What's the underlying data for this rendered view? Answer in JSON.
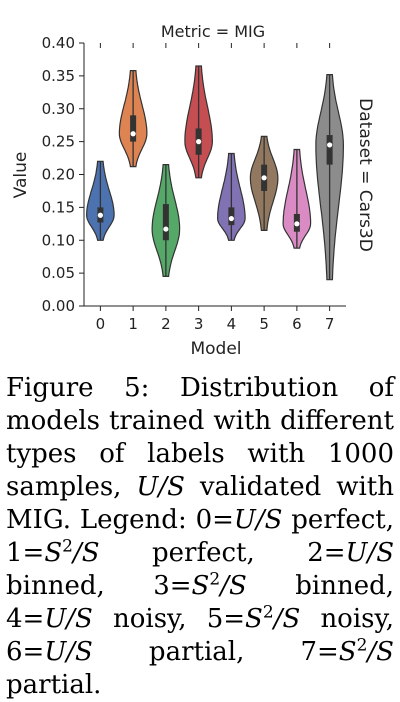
{
  "chart_data": {
    "type": "violin",
    "title": "Metric = MIG",
    "right_label": "Dataset = Cars3D",
    "xlabel": "Model",
    "ylabel": "Value",
    "ylim": [
      0.0,
      0.4
    ],
    "yticks": [
      "0.00",
      "0.05",
      "0.10",
      "0.15",
      "0.20",
      "0.25",
      "0.30",
      "0.35",
      "0.40"
    ],
    "categories": [
      "0",
      "1",
      "2",
      "3",
      "4",
      "5",
      "6",
      "7"
    ],
    "grid": false,
    "colors": [
      "#4c72b0",
      "#dd8452",
      "#55a868",
      "#c44e52",
      "#8172b3",
      "#937860",
      "#da8bc3",
      "#8c8c8c"
    ],
    "series": [
      {
        "category": "0",
        "min": 0.1,
        "max": 0.22,
        "q1": 0.127,
        "median": 0.138,
        "q3": 0.15
      },
      {
        "category": "1",
        "min": 0.212,
        "max": 0.358,
        "q1": 0.25,
        "median": 0.262,
        "q3": 0.29
      },
      {
        "category": "2",
        "min": 0.045,
        "max": 0.215,
        "q1": 0.1,
        "median": 0.117,
        "q3": 0.155
      },
      {
        "category": "3",
        "min": 0.195,
        "max": 0.365,
        "q1": 0.23,
        "median": 0.25,
        "q3": 0.27
      },
      {
        "category": "4",
        "min": 0.1,
        "max": 0.232,
        "q1": 0.123,
        "median": 0.133,
        "q3": 0.15
      },
      {
        "category": "5",
        "min": 0.115,
        "max": 0.258,
        "q1": 0.175,
        "median": 0.195,
        "q3": 0.215
      },
      {
        "category": "6",
        "min": 0.088,
        "max": 0.238,
        "q1": 0.113,
        "median": 0.125,
        "q3": 0.14
      },
      {
        "category": "7",
        "min": 0.04,
        "max": 0.352,
        "q1": 0.215,
        "median": 0.245,
        "q3": 0.26
      }
    ]
  },
  "caption": {
    "label": "Figure 5:",
    "text_1": "Distribution of models trained with different types of labels with 1000 samples,",
    "us_1": "U/S",
    "text_2": "validated with MIG. Legend: 0=",
    "us_2": "U/S",
    "text_3": "perfect, 1=",
    "s2s_1_base": "S",
    "s2s_1_sup": "2",
    "s2s_1_tail": "/S",
    "text_4": "perfect, 2=",
    "us_3": "U/S",
    "text_5": "binned, 3=",
    "s2s_2_base": "S",
    "s2s_2_sup": "2",
    "s2s_2_tail": "/S",
    "text_6": "binned, 4=",
    "us_4": "U/S",
    "text_7": "noisy, 5=",
    "s2s_3_base": "S",
    "s2s_3_sup": "2",
    "s2s_3_tail": "/S",
    "text_8": "noisy, 6=",
    "us_5": "U/S",
    "text_9": "partial, 7=",
    "s2s_4_base": "S",
    "s2s_4_sup": "2",
    "s2s_4_tail": "/S",
    "text_10": "partial."
  }
}
